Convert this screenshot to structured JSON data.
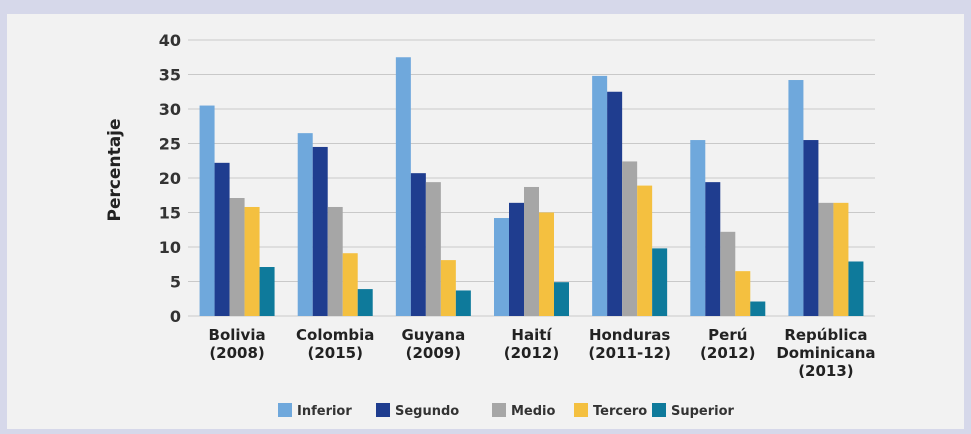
{
  "chart_data": {
    "type": "bar",
    "ylabel": "Percentaje",
    "xlabel": "",
    "ylim": [
      0,
      40
    ],
    "yticks": [
      0,
      5,
      10,
      15,
      20,
      25,
      30,
      35,
      40
    ],
    "grid": true,
    "legend_position": "bottom",
    "categories": [
      [
        "Bolivia",
        "(2008)"
      ],
      [
        "Colombia",
        "(2015)"
      ],
      [
        "Guyana",
        "(2009)"
      ],
      [
        "Haití",
        "(2012)"
      ],
      [
        "Honduras",
        "(2011-12)"
      ],
      [
        "Perú",
        "(2012)"
      ],
      [
        "República",
        "Dominicana",
        "(2013)"
      ]
    ],
    "series": [
      {
        "name": "Inferior",
        "color": "#6fa8dc",
        "values": [
          30.5,
          26.5,
          37.5,
          14.2,
          34.8,
          25.5,
          34.2
        ]
      },
      {
        "name": "Segundo",
        "color": "#1f3d8f",
        "values": [
          22.2,
          24.5,
          20.7,
          16.4,
          32.5,
          19.4,
          25.5
        ]
      },
      {
        "name": "Medio",
        "color": "#a6a6a6",
        "values": [
          17.1,
          15.8,
          19.4,
          18.7,
          22.4,
          12.2,
          16.4
        ]
      },
      {
        "name": "Tercero",
        "color": "#f4c040",
        "values": [
          15.8,
          9.1,
          8.1,
          15.0,
          18.9,
          6.5,
          16.4
        ]
      },
      {
        "name": "Superior",
        "color": "#0e7a9b",
        "values": [
          7.1,
          3.9,
          3.7,
          4.9,
          9.8,
          2.1,
          7.9
        ]
      }
    ]
  }
}
